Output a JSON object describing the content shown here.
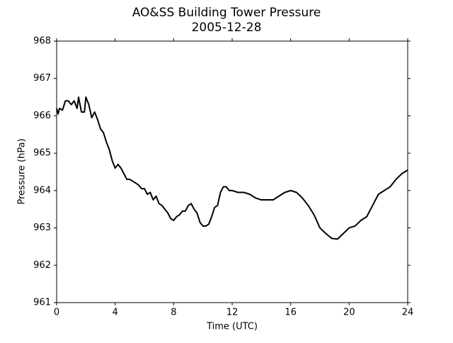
{
  "chart_data": {
    "type": "line",
    "title": "AO&SS Building Tower Pressure",
    "subtitle": "2005-12-28",
    "xlabel": "Time (UTC)",
    "ylabel": "Pressure (hPa)",
    "x": [
      0,
      0.1,
      0.2,
      0.4,
      0.6,
      0.8,
      1.0,
      1.2,
      1.4,
      1.5,
      1.7,
      1.9,
      2.0,
      2.2,
      2.4,
      2.6,
      2.8,
      3.0,
      3.2,
      3.4,
      3.6,
      3.8,
      4.0,
      4.2,
      4.4,
      4.6,
      4.8,
      5.0,
      5.2,
      5.4,
      5.6,
      5.8,
      6.0,
      6.2,
      6.4,
      6.6,
      6.8,
      7.0,
      7.2,
      7.4,
      7.6,
      7.8,
      8.0,
      8.2,
      8.4,
      8.6,
      8.8,
      9.0,
      9.2,
      9.4,
      9.6,
      9.8,
      10.0,
      10.2,
      10.4,
      10.6,
      10.8,
      11.0,
      11.2,
      11.4,
      11.6,
      11.8,
      12.0,
      12.4,
      12.8,
      13.2,
      13.6,
      14.0,
      14.4,
      14.8,
      15.2,
      15.6,
      16.0,
      16.4,
      16.8,
      17.2,
      17.6,
      18.0,
      18.4,
      18.8,
      19.2,
      19.6,
      20.0,
      20.4,
      20.8,
      21.2,
      21.6,
      22.0,
      22.4,
      22.8,
      23.2,
      23.6,
      24.0
    ],
    "series": [
      {
        "name": "Pressure",
        "color": "#000000",
        "values": [
          966.2,
          966.05,
          966.2,
          966.15,
          966.4,
          966.4,
          966.3,
          966.4,
          966.2,
          966.5,
          966.1,
          966.1,
          966.5,
          966.3,
          965.95,
          966.1,
          965.9,
          965.65,
          965.55,
          965.3,
          965.1,
          964.8,
          964.6,
          964.7,
          964.6,
          964.45,
          964.3,
          964.3,
          964.25,
          964.2,
          964.15,
          964.05,
          964.05,
          963.9,
          963.95,
          963.75,
          963.85,
          963.65,
          963.6,
          963.5,
          963.4,
          963.25,
          963.2,
          963.3,
          963.35,
          963.45,
          963.45,
          963.6,
          963.65,
          963.5,
          963.4,
          963.15,
          963.05,
          963.05,
          963.1,
          963.3,
          963.55,
          963.6,
          963.95,
          964.1,
          964.1,
          964.0,
          964.0,
          963.95,
          963.95,
          963.9,
          963.8,
          963.75,
          963.75,
          963.75,
          963.85,
          963.95,
          964.0,
          963.95,
          963.8,
          963.6,
          963.35,
          963.0,
          962.85,
          962.72,
          962.7,
          962.85,
          963.0,
          963.05,
          963.2,
          963.3,
          963.6,
          963.9,
          964.0,
          964.1,
          964.3,
          964.45,
          964.55
        ]
      }
    ],
    "xlim": [
      0,
      24
    ],
    "xticks": [
      0,
      4,
      8,
      12,
      16,
      20,
      24
    ],
    "ylim": [
      961,
      968
    ],
    "yticks": [
      961,
      962,
      963,
      964,
      965,
      966,
      967,
      968
    ],
    "grid": false
  }
}
